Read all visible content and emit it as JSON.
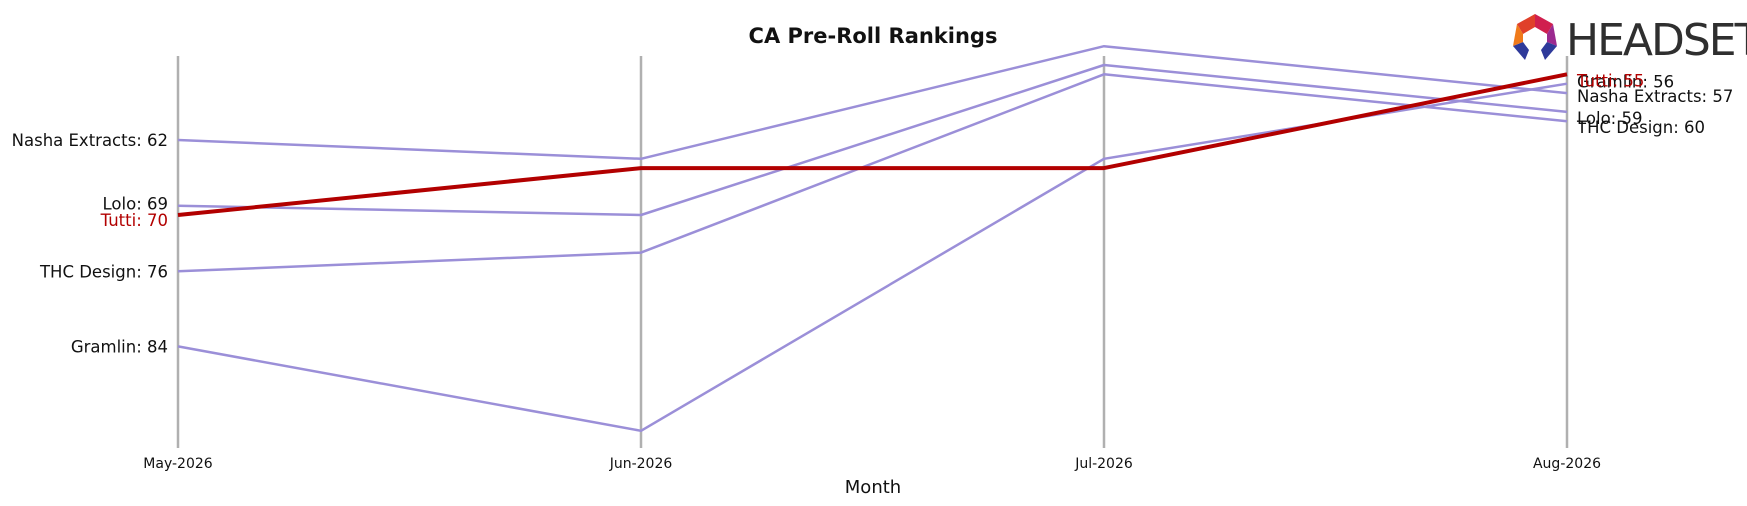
{
  "chart_data": {
    "type": "line",
    "title": "CA Pre-Roll Rankings",
    "xlabel": "Month",
    "ylabel": "",
    "x": [
      "May-2026",
      "Jun-2026",
      "Jul-2026",
      "Aug-2026"
    ],
    "y_inverted": true,
    "ylim": [
      95,
      50
    ],
    "grid": "vertical lines at each month",
    "series": [
      {
        "name": "Nasha Extracts",
        "values": [
          62,
          64,
          52,
          57
        ],
        "color": "#9b8fd8",
        "start_label": "Nasha Extracts: 62",
        "end_label": "Nasha Extracts: 57"
      },
      {
        "name": "Lolo",
        "values": [
          69,
          70,
          54,
          59
        ],
        "color": "#9b8fd8",
        "start_label": "Lolo: 69",
        "end_label": "Lolo: 59"
      },
      {
        "name": "THC Design",
        "values": [
          76,
          74,
          55,
          60
        ],
        "color": "#9b8fd8",
        "start_label": "THC Design: 76",
        "end_label": "THC Design: 60"
      },
      {
        "name": "Gramlin",
        "values": [
          84,
          93,
          64,
          56
        ],
        "color": "#9b8fd8",
        "start_label": "Gramlin: 84",
        "end_label": "Gramlin: 56"
      },
      {
        "name": "Tutti",
        "values": [
          70,
          65,
          65,
          55
        ],
        "color": "#b20000",
        "highlight": true,
        "start_label": "Tutti: 70",
        "end_label": "Tutti: 55"
      }
    ]
  },
  "logo": {
    "text": "HEADSET"
  }
}
